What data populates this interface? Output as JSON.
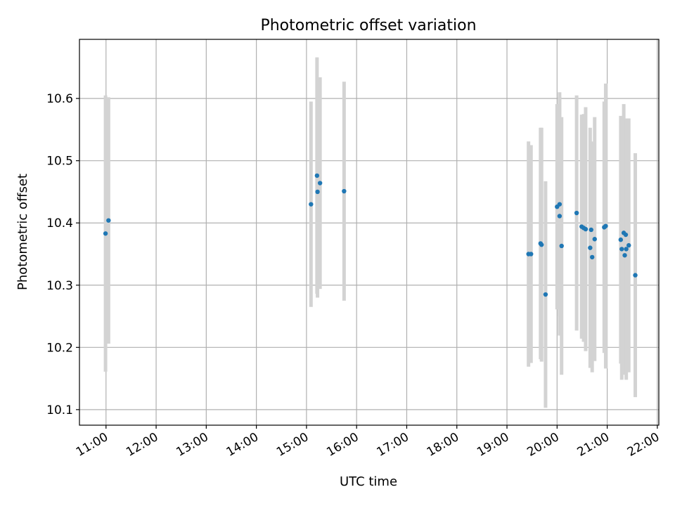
{
  "chart_data": {
    "type": "scatter",
    "title": "Photometric offset variation",
    "xlabel": "UTC time",
    "ylabel": "Photometric offset",
    "x_unit": "hours",
    "xlim": [
      10.47,
      22.03
    ],
    "ylim": [
      10.075,
      10.695
    ],
    "x_ticks": [
      {
        "value": 11,
        "label": "11:00"
      },
      {
        "value": 12,
        "label": "12:00"
      },
      {
        "value": 13,
        "label": "13:00"
      },
      {
        "value": 14,
        "label": "14:00"
      },
      {
        "value": 15,
        "label": "15:00"
      },
      {
        "value": 16,
        "label": "16:00"
      },
      {
        "value": 17,
        "label": "17:00"
      },
      {
        "value": 18,
        "label": "18:00"
      },
      {
        "value": 19,
        "label": "19:00"
      },
      {
        "value": 20,
        "label": "20:00"
      },
      {
        "value": 21,
        "label": "21:00"
      },
      {
        "value": 22,
        "label": "22:00"
      }
    ],
    "y_ticks": [
      {
        "value": 10.1,
        "label": "10.1"
      },
      {
        "value": 10.2,
        "label": "10.2"
      },
      {
        "value": 10.3,
        "label": "10.3"
      },
      {
        "value": 10.4,
        "label": "10.4"
      },
      {
        "value": 10.5,
        "label": "10.5"
      },
      {
        "value": 10.6,
        "label": "10.6"
      }
    ],
    "grid": true,
    "point_color": "#1f77b4",
    "errorbar_color": "#d3d3d3",
    "points": [
      {
        "x": 10.99,
        "y": 10.383,
        "err": 0.222
      },
      {
        "x": 11.05,
        "y": 10.404,
        "err": 0.198
      },
      {
        "x": 15.09,
        "y": 10.43,
        "err": 0.165
      },
      {
        "x": 15.21,
        "y": 10.476,
        "err": 0.19
      },
      {
        "x": 15.22,
        "y": 10.45,
        "err": 0.17
      },
      {
        "x": 15.27,
        "y": 10.464,
        "err": 0.17
      },
      {
        "x": 15.75,
        "y": 10.451,
        "err": 0.176
      },
      {
        "x": 19.43,
        "y": 10.35,
        "err": 0.181
      },
      {
        "x": 19.48,
        "y": 10.35,
        "err": 0.175
      },
      {
        "x": 19.67,
        "y": 10.367,
        "err": 0.186
      },
      {
        "x": 19.69,
        "y": 10.365,
        "err": 0.188
      },
      {
        "x": 19.77,
        "y": 10.285,
        "err": 0.182
      },
      {
        "x": 20.0,
        "y": 10.426,
        "err": 0.165
      },
      {
        "x": 20.05,
        "y": 10.43,
        "err": 0.18
      },
      {
        "x": 20.05,
        "y": 10.411,
        "err": 0.192
      },
      {
        "x": 20.09,
        "y": 10.363,
        "err": 0.207
      },
      {
        "x": 20.39,
        "y": 10.416,
        "err": 0.189
      },
      {
        "x": 20.49,
        "y": 10.394,
        "err": 0.18
      },
      {
        "x": 20.53,
        "y": 10.392,
        "err": 0.183
      },
      {
        "x": 20.57,
        "y": 10.39,
        "err": 0.196
      },
      {
        "x": 20.66,
        "y": 10.36,
        "err": 0.193
      },
      {
        "x": 20.68,
        "y": 10.389,
        "err": 0.142
      },
      {
        "x": 20.7,
        "y": 10.345,
        "err": 0.185
      },
      {
        "x": 20.75,
        "y": 10.374,
        "err": 0.196
      },
      {
        "x": 20.94,
        "y": 10.393,
        "err": 0.202
      },
      {
        "x": 20.97,
        "y": 10.395,
        "err": 0.229
      },
      {
        "x": 21.27,
        "y": 10.373,
        "err": 0.199
      },
      {
        "x": 21.29,
        "y": 10.358,
        "err": 0.21
      },
      {
        "x": 21.33,
        "y": 10.384,
        "err": 0.207
      },
      {
        "x": 21.35,
        "y": 10.348,
        "err": 0.192
      },
      {
        "x": 21.37,
        "y": 10.381,
        "err": 0.187
      },
      {
        "x": 21.38,
        "y": 10.358,
        "err": 0.21
      },
      {
        "x": 21.43,
        "y": 10.364,
        "err": 0.204
      },
      {
        "x": 21.56,
        "y": 10.316,
        "err": 0.196
      }
    ]
  }
}
